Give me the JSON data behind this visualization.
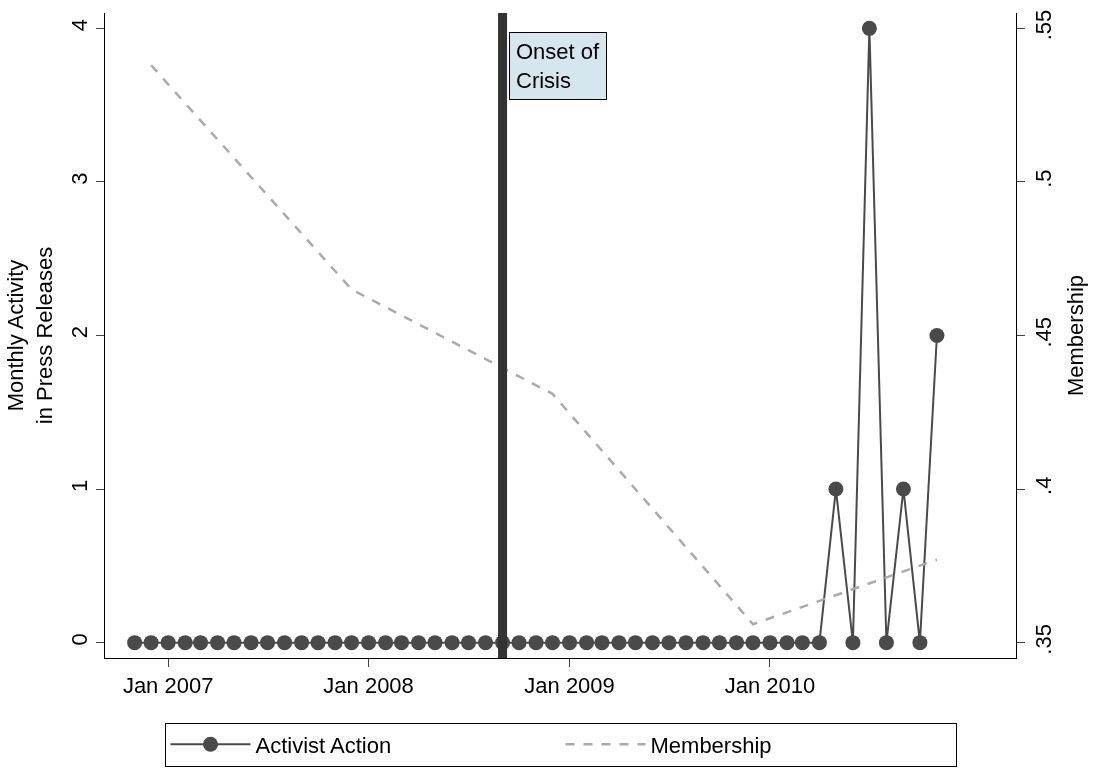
{
  "chart_data": {
    "type": "line",
    "ylabel": "Monthly Activity\nin Press Releases",
    "y2label": "Membership",
    "x": [
      "2006-11",
      "2006-12",
      "2007-01",
      "2007-02",
      "2007-03",
      "2007-04",
      "2007-05",
      "2007-06",
      "2007-07",
      "2007-08",
      "2007-09",
      "2007-10",
      "2007-11",
      "2007-12",
      "2008-01",
      "2008-02",
      "2008-03",
      "2008-04",
      "2008-05",
      "2008-06",
      "2008-07",
      "2008-08",
      "2008-09",
      "2008-10",
      "2008-11",
      "2008-12",
      "2009-01",
      "2009-02",
      "2009-03",
      "2009-04",
      "2009-05",
      "2009-06",
      "2009-07",
      "2009-08",
      "2009-09",
      "2009-10",
      "2009-11",
      "2009-12",
      "2010-01",
      "2010-02",
      "2010-03",
      "2010-04",
      "2010-05",
      "2010-06",
      "2010-07",
      "2010-08",
      "2010-09",
      "2010-10",
      "2010-11"
    ],
    "series": [
      {
        "name": "Activist Action",
        "color": "#4a4a4a",
        "marker": "circle",
        "line_style": "solid",
        "values": [
          0,
          0,
          0,
          0,
          0,
          0,
          0,
          0,
          0,
          0,
          0,
          0,
          0,
          0,
          0,
          0,
          0,
          0,
          0,
          0,
          0,
          0,
          0,
          0,
          0,
          0,
          0,
          0,
          0,
          0,
          0,
          0,
          0,
          0,
          0,
          0,
          0,
          0,
          0,
          0,
          0,
          0,
          1,
          0,
          4,
          0,
          1,
          0,
          2
        ]
      },
      {
        "name": "Membership",
        "color": "#aaaaaa",
        "marker": "none",
        "line_style": "dashed",
        "axis": "y2",
        "x": [
          "2006-12",
          "2007-12",
          "2008-12",
          "2009-12",
          "2010-11"
        ],
        "values": [
          0.538,
          0.465,
          0.431,
          0.356,
          0.377
        ]
      }
    ],
    "xlim": [
      "2006-09-08",
      "2011-03-25"
    ],
    "xticks": [
      {
        "value": "2007-01",
        "label": "Jan 2007"
      },
      {
        "value": "2008-01",
        "label": "Jan 2008"
      },
      {
        "value": "2009-01",
        "label": "Jan 2009"
      },
      {
        "value": "2010-01",
        "label": "Jan 2010"
      }
    ],
    "ylim": [
      -0.1,
      4.1
    ],
    "yticks": [
      0,
      1,
      2,
      3,
      4
    ],
    "y2lim": [
      0.345,
      0.555
    ],
    "y2ticks": [
      {
        "value": 0.35,
        "label": ".35"
      },
      {
        "value": 0.4,
        "label": ".4"
      },
      {
        "value": 0.45,
        "label": ".45"
      },
      {
        "value": 0.5,
        "label": ".5"
      },
      {
        "value": 0.55,
        "label": ".55"
      }
    ],
    "ref_lines": [
      {
        "axis": "x",
        "value": "2008-09",
        "label": "Onset of\nCrisis",
        "color": "#333333"
      }
    ],
    "grid": false,
    "legend": "bottom"
  }
}
